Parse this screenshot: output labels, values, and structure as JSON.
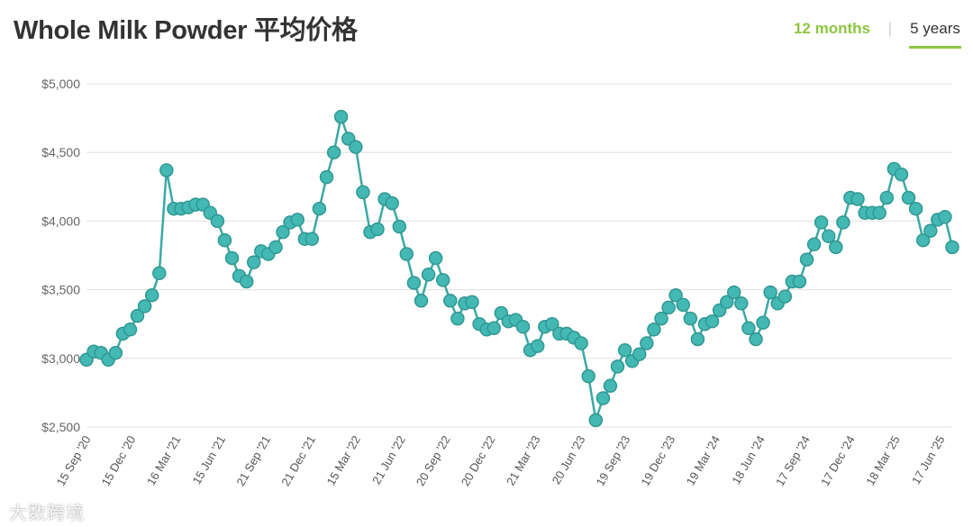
{
  "title": "Whole Milk Powder 平均价格",
  "tabs": {
    "months_label": "12 months",
    "separator": "|",
    "years_label": "5 years",
    "active": "5 years"
  },
  "watermark": "大数跨境",
  "colors": {
    "line": "#3aa9a5",
    "marker": "#44b8b3",
    "marker_stroke": "#2f9894",
    "grid": "#e0e0e0",
    "accent": "#8dc63f"
  },
  "chart_data": {
    "type": "line",
    "title": "",
    "xlabel": "",
    "ylabel": "",
    "ylim": [
      2500,
      5000
    ],
    "y_ticks": [
      "$2,500",
      "$3,000",
      "$3,500",
      "$4,000",
      "$4,500",
      "$5,000"
    ],
    "y_tick_values": [
      2500,
      3000,
      3500,
      4000,
      4500,
      5000
    ],
    "x_tick_labels": [
      "15 Sep '20",
      "15 Dec '20",
      "16 Mar '21",
      "15 Jun '21",
      "21 Sep '21",
      "21 Dec '21",
      "15 Mar '22",
      "21 Jun '22",
      "20 Sep '22",
      "20 Dec '22",
      "21 Mar '23",
      "20 Jun '23",
      "19 Sep '23",
      "19 Dec '23",
      "19 Mar '24",
      "18 Jun '24",
      "17 Sep '24",
      "17 Dec '24",
      "18 Mar '25",
      "17 Jun '25"
    ],
    "grid": true,
    "legend": "none",
    "series": [
      {
        "values": [
          2990,
          3050,
          3040,
          2990,
          3040,
          3180,
          3210,
          3310,
          3380,
          3460,
          3620,
          4370,
          4090,
          4090,
          4100,
          4120,
          4120,
          4060,
          4000,
          3860,
          3730,
          3600,
          3560,
          3700,
          3780,
          3760,
          3810,
          3920,
          3990,
          4010,
          3870,
          3870,
          4090,
          4320,
          4500,
          4760,
          4600,
          4540,
          4210,
          3920,
          3940,
          4160,
          4130,
          3960,
          3760,
          3550,
          3420,
          3610,
          3730,
          3570,
          3420,
          3290,
          3400,
          3410,
          3250,
          3210,
          3220,
          3330,
          3270,
          3280,
          3230,
          3060,
          3090,
          3230,
          3250,
          3180,
          3180,
          3150,
          3110,
          2870,
          2550,
          2710,
          2800,
          2940,
          3060,
          2980,
          3030,
          3110,
          3210,
          3290,
          3370,
          3460,
          3390,
          3290,
          3140,
          3250,
          3270,
          3350,
          3410,
          3480,
          3400,
          3220,
          3140,
          3260,
          3480,
          3400,
          3450,
          3560,
          3560,
          3720,
          3830,
          3990,
          3890,
          3810,
          3990,
          4170,
          4160,
          4060,
          4060,
          4060,
          4170,
          4380,
          4340,
          4170,
          4090,
          3860,
          3930,
          4010,
          4030,
          3810
        ]
      }
    ]
  }
}
